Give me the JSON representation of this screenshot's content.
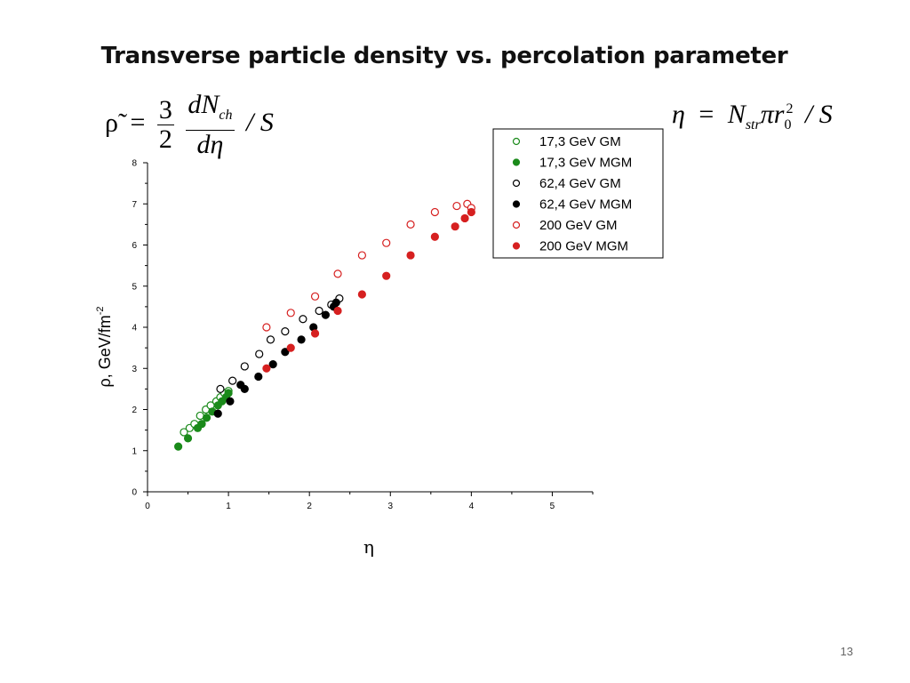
{
  "slide": {
    "title": "Transverse particle density vs. percolation parameter",
    "page_number": "13"
  },
  "formulas": {
    "rho_tilde": {
      "lhs": "ρ̃",
      "eq": "=",
      "frac1_num": "3",
      "frac1_den": "2",
      "frac2_num": "dN",
      "frac2_num_sub": "ch",
      "frac2_den": "dη",
      "tail": "/ S"
    },
    "eta": {
      "lhs": "η",
      "eq": "=",
      "n": "N",
      "n_sub": "str",
      "pi_r": "πr",
      "r_sub": "0",
      "r_sup": "2",
      "tail": "/ S"
    }
  },
  "chart_data": {
    "type": "scatter",
    "xlabel": "η",
    "ylabel": "ρ, GeV/fm",
    "ylabel_sup": "-2",
    "xlim": [
      0,
      5.5
    ],
    "ylim": [
      0,
      8
    ],
    "xticks": [
      "0",
      "1",
      "2",
      "3",
      "4",
      "5"
    ],
    "yticks": [
      "0",
      "1",
      "2",
      "3",
      "4",
      "5",
      "6",
      "7",
      "8"
    ],
    "legend_position": "top-right",
    "grid": false,
    "series": [
      {
        "name": "17,3 GeV GM",
        "color": "#1a8a1a",
        "filled": false,
        "points": [
          [
            0.45,
            1.45
          ],
          [
            0.52,
            1.55
          ],
          [
            0.58,
            1.65
          ],
          [
            0.65,
            1.85
          ],
          [
            0.72,
            2.0
          ],
          [
            0.78,
            2.1
          ],
          [
            0.85,
            2.2
          ],
          [
            0.9,
            2.3
          ],
          [
            0.95,
            2.4
          ],
          [
            1.0,
            2.45
          ]
        ]
      },
      {
        "name": "17,3 GeV MGM",
        "color": "#1a8a1a",
        "filled": true,
        "points": [
          [
            0.38,
            1.1
          ],
          [
            0.5,
            1.3
          ],
          [
            0.62,
            1.55
          ],
          [
            0.67,
            1.65
          ],
          [
            0.73,
            1.8
          ],
          [
            0.8,
            1.95
          ],
          [
            0.87,
            2.1
          ],
          [
            0.92,
            2.2
          ],
          [
            0.97,
            2.3
          ],
          [
            1.0,
            2.4
          ]
        ]
      },
      {
        "name": "62,4 GeV GM",
        "color": "#000000",
        "filled": false,
        "points": [
          [
            0.9,
            2.5
          ],
          [
            1.05,
            2.7
          ],
          [
            1.2,
            3.05
          ],
          [
            1.38,
            3.35
          ],
          [
            1.52,
            3.7
          ],
          [
            1.7,
            3.9
          ],
          [
            1.92,
            4.2
          ],
          [
            2.12,
            4.4
          ],
          [
            2.27,
            4.55
          ],
          [
            2.37,
            4.7
          ]
        ]
      },
      {
        "name": "62,4 GeV MGM",
        "color": "#000000",
        "filled": true,
        "points": [
          [
            0.87,
            1.9
          ],
          [
            1.02,
            2.2
          ],
          [
            1.15,
            2.6
          ],
          [
            1.2,
            2.5
          ],
          [
            1.37,
            2.8
          ],
          [
            1.55,
            3.1
          ],
          [
            1.7,
            3.4
          ],
          [
            1.9,
            3.7
          ],
          [
            2.05,
            4.0
          ],
          [
            2.2,
            4.3
          ],
          [
            2.3,
            4.5
          ],
          [
            2.33,
            4.6
          ]
        ]
      },
      {
        "name": "200 GeV GM",
        "color": "#d62020",
        "filled": false,
        "points": [
          [
            1.47,
            4.0
          ],
          [
            1.77,
            4.35
          ],
          [
            2.07,
            4.75
          ],
          [
            2.35,
            5.3
          ],
          [
            2.65,
            5.75
          ],
          [
            2.95,
            6.05
          ],
          [
            3.25,
            6.5
          ],
          [
            3.55,
            6.8
          ],
          [
            3.82,
            6.95
          ],
          [
            3.95,
            7.0
          ],
          [
            4.0,
            6.9
          ]
        ]
      },
      {
        "name": "200 GeV MGM",
        "color": "#d62020",
        "filled": true,
        "points": [
          [
            1.47,
            3.0
          ],
          [
            1.77,
            3.5
          ],
          [
            2.07,
            3.85
          ],
          [
            2.35,
            4.4
          ],
          [
            2.65,
            4.8
          ],
          [
            2.95,
            5.25
          ],
          [
            3.25,
            5.75
          ],
          [
            3.55,
            6.2
          ],
          [
            3.8,
            6.45
          ],
          [
            3.92,
            6.65
          ],
          [
            4.0,
            6.8
          ]
        ]
      }
    ]
  }
}
